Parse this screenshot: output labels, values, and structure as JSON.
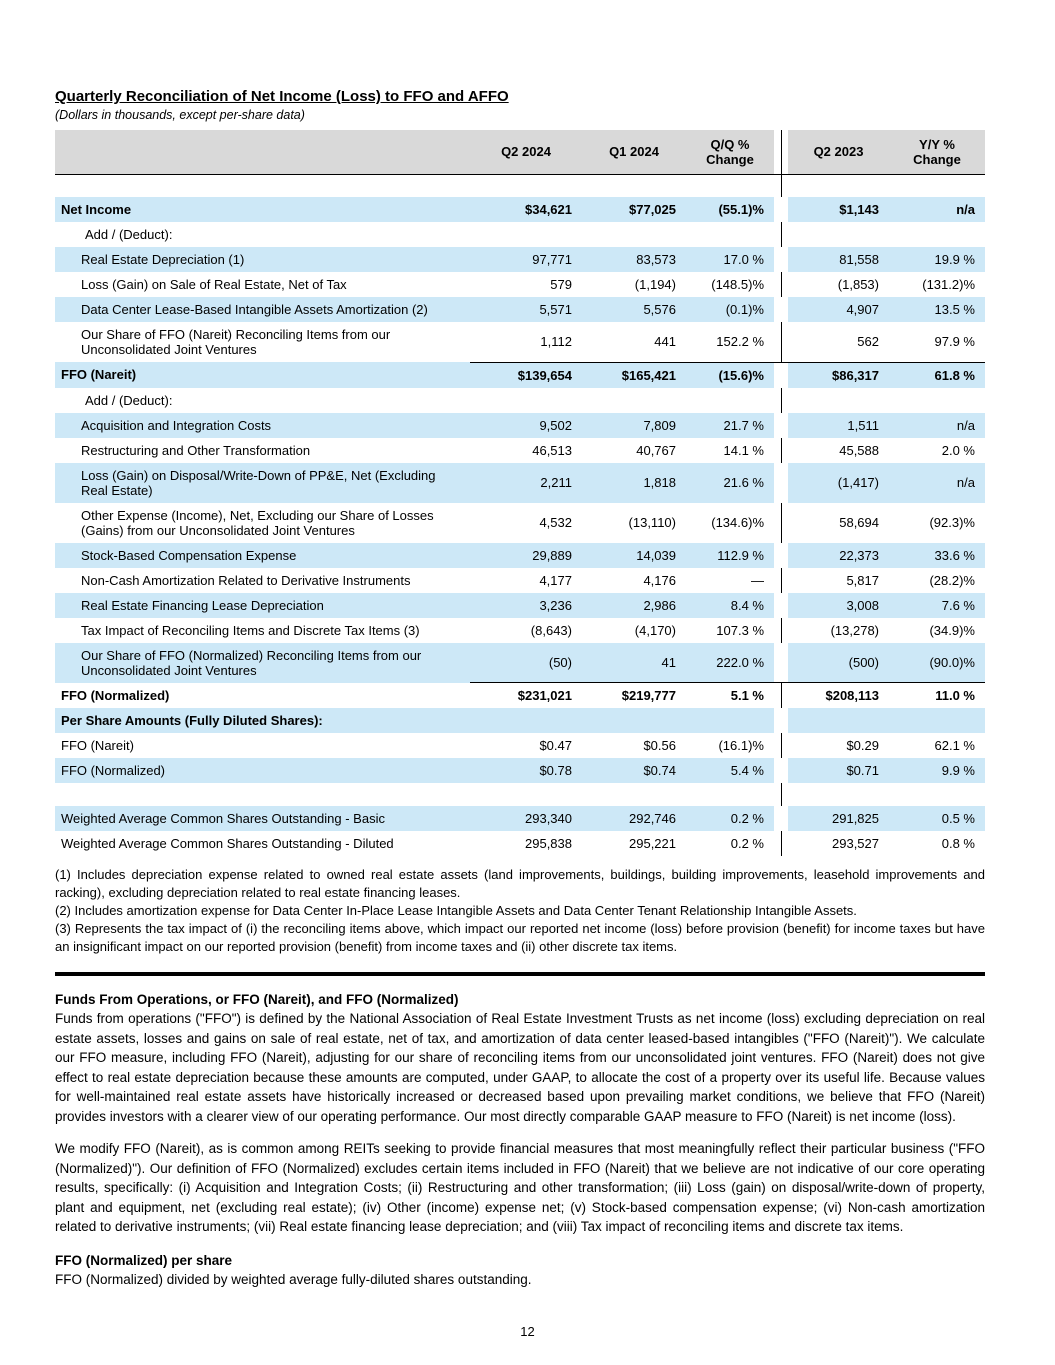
{
  "page": {
    "title": "Quarterly Reconciliation of Net Income (Loss) to FFO and AFFO",
    "subtitle": "(Dollars in thousands, except per-share data)",
    "page_number": "12"
  },
  "table": {
    "columns": [
      "Q2 2024",
      "Q1 2024",
      "Q/Q %\nChange",
      "Q2 2023",
      "Y/Y %\nChange"
    ],
    "rows": [
      {
        "label": "",
        "values": [
          "",
          "",
          "",
          "",
          ""
        ],
        "bg": "white",
        "spacer": true
      },
      {
        "label": "Net Income",
        "values": [
          "$34,621",
          "$77,025",
          "(55.1)%",
          "$1,143",
          "n/a"
        ],
        "bg": "blue",
        "bold": true,
        "indent": 0
      },
      {
        "label": "Add / (Deduct):",
        "values": [
          "",
          "",
          "",
          "",
          ""
        ],
        "bg": "white",
        "indent": 1
      },
      {
        "label": "Real Estate Depreciation (1)",
        "values": [
          "97,771",
          "83,573",
          "17.0 %",
          "81,558",
          "19.9 %"
        ],
        "bg": "blue",
        "indent": 2
      },
      {
        "label": "Loss (Gain) on Sale of Real Estate, Net of Tax",
        "values": [
          "579",
          "(1,194)",
          "(148.5)%",
          "(1,853)",
          "(131.2)%"
        ],
        "bg": "white",
        "indent": 2
      },
      {
        "label": "Data Center Lease-Based Intangible Assets Amortization (2)",
        "values": [
          "5,571",
          "5,576",
          "(0.1)%",
          "4,907",
          "13.5 %"
        ],
        "bg": "blue",
        "indent": 2
      },
      {
        "label": "Our Share of FFO (Nareit) Reconciling Items from our Unconsolidated Joint Ventures",
        "values": [
          "1,112",
          "441",
          "152.2 %",
          "562",
          "97.9 %"
        ],
        "bg": "white",
        "indent": 2,
        "underline_values": true
      },
      {
        "label": "FFO (Nareit)",
        "values": [
          "$139,654",
          "$165,421",
          "(15.6)%",
          "$86,317",
          "61.8 %"
        ],
        "bg": "blue",
        "bold": true,
        "indent": 0
      },
      {
        "label": "Add / (Deduct):",
        "values": [
          "",
          "",
          "",
          "",
          ""
        ],
        "bg": "white",
        "indent": 1
      },
      {
        "label": "Acquisition and Integration Costs",
        "values": [
          "9,502",
          "7,809",
          "21.7 %",
          "1,511",
          "n/a"
        ],
        "bg": "blue",
        "indent": 2
      },
      {
        "label": "Restructuring and Other Transformation",
        "values": [
          "46,513",
          "40,767",
          "14.1 %",
          "45,588",
          "2.0 %"
        ],
        "bg": "white",
        "indent": 2
      },
      {
        "label": "Loss (Gain) on Disposal/Write-Down of PP&E, Net (Excluding Real Estate)",
        "values": [
          "2,211",
          "1,818",
          "21.6 %",
          "(1,417)",
          "n/a"
        ],
        "bg": "blue",
        "indent": 2
      },
      {
        "label": "Other Expense (Income), Net, Excluding our Share of Losses (Gains) from our Unconsolidated Joint Ventures",
        "values": [
          "4,532",
          "(13,110)",
          "(134.6)%",
          "58,694",
          "(92.3)%"
        ],
        "bg": "white",
        "indent": 2
      },
      {
        "label": "Stock-Based Compensation Expense",
        "values": [
          "29,889",
          "14,039",
          "112.9 %",
          "22,373",
          "33.6 %"
        ],
        "bg": "blue",
        "indent": 2
      },
      {
        "label": "Non-Cash Amortization Related to Derivative Instruments",
        "values": [
          "4,177",
          "4,176",
          "—",
          "5,817",
          "(28.2)%"
        ],
        "bg": "white",
        "indent": 2
      },
      {
        "label": "Real Estate Financing Lease Depreciation",
        "values": [
          "3,236",
          "2,986",
          "8.4 %",
          "3,008",
          "7.6 %"
        ],
        "bg": "blue",
        "indent": 2
      },
      {
        "label": "Tax Impact of Reconciling Items and Discrete Tax Items (3)",
        "values": [
          "(8,643)",
          "(4,170)",
          "107.3 %",
          "(13,278)",
          "(34.9)%"
        ],
        "bg": "white",
        "indent": 2
      },
      {
        "label": "Our Share of FFO (Normalized) Reconciling Items from our Unconsolidated Joint Ventures",
        "values": [
          "(50)",
          "41",
          "222.0 %",
          "(500)",
          "(90.0)%"
        ],
        "bg": "blue",
        "indent": 2,
        "underline_values": true
      },
      {
        "label": "FFO (Normalized)",
        "values": [
          "$231,021",
          "$219,777",
          "5.1 %",
          "$208,113",
          "11.0 %"
        ],
        "bg": "white",
        "bold": true,
        "indent": 0
      },
      {
        "label": "Per Share Amounts (Fully Diluted Shares):",
        "values": [
          "",
          "",
          "",
          "",
          ""
        ],
        "bg": "blue",
        "bold": true,
        "indent": 0
      },
      {
        "label": "FFO (Nareit)",
        "values": [
          "$0.47",
          "$0.56",
          "(16.1)%",
          "$0.29",
          "62.1 %"
        ],
        "bg": "white",
        "indent": 0
      },
      {
        "label": "FFO (Normalized)",
        "values": [
          "$0.78",
          "$0.74",
          "5.4 %",
          "$0.71",
          "9.9 %"
        ],
        "bg": "blue",
        "indent": 0
      },
      {
        "label": "",
        "values": [
          "",
          "",
          "",
          "",
          ""
        ],
        "bg": "white",
        "spacer": true
      },
      {
        "label": "Weighted Average Common Shares Outstanding - Basic",
        "values": [
          "293,340",
          "292,746",
          "0.2 %",
          "291,825",
          "0.5 %"
        ],
        "bg": "blue",
        "indent": 0
      },
      {
        "label": "Weighted Average Common Shares Outstanding - Diluted",
        "values": [
          "295,838",
          "295,221",
          "0.2 %",
          "293,527",
          "0.8 %"
        ],
        "bg": "white",
        "indent": 0
      }
    ]
  },
  "footnotes": [
    "(1) Includes depreciation expense related to owned real estate assets (land improvements, buildings, building improvements, leasehold improvements and racking), excluding depreciation related to real estate financing leases.",
    "(2) Includes amortization expense for Data Center In-Place Lease Intangible Assets and Data Center Tenant Relationship Intangible Assets.",
    "(3) Represents the tax impact of (i) the reconciling items above, which impact our reported net income (loss) before provision (benefit) for income taxes but have an insignificant impact on our reported provision (benefit) from income taxes and (ii) other discrete tax items."
  ],
  "sections": [
    {
      "heading": "Funds From Operations, or FFO (Nareit), and FFO (Normalized)",
      "paragraphs": [
        "Funds from operations (\"FFO\") is defined by the National Association of Real Estate Investment Trusts as net income (loss) excluding depreciation on real estate assets, losses and gains on sale of real estate, net of tax, and amortization of data center leased-based intangibles (\"FFO (Nareit)\"). We calculate our FFO measure, including FFO (Nareit), adjusting for our share of reconciling items from our unconsolidated joint ventures. FFO (Nareit) does not give effect to real estate depreciation because these amounts are computed, under GAAP, to allocate the cost of a property over its useful life. Because values for well-maintained real estate assets have historically increased or decreased based upon prevailing market conditions, we believe that FFO (Nareit) provides investors with a clearer view of our operating performance. Our most directly comparable GAAP measure to FFO (Nareit) is net income (loss).",
        "We modify FFO (Nareit), as is common among REITs seeking to provide financial measures that most meaningfully reflect their particular business (\"FFO (Normalized)\"). Our definition of FFO (Normalized) excludes certain items included in FFO (Nareit) that we believe are not indicative of our core operating results, specifically: (i) Acquisition and Integration Costs; (ii) Restructuring and other transformation; (iii) Loss (gain) on disposal/write-down of property, plant and equipment, net (excluding real estate); (iv) Other (income) expense net; (v) Stock-based compensation expense; (vi) Non-cash amortization related to derivative instruments; (vii) Real estate financing lease depreciation; and (viii) Tax impact of reconciling items and discrete tax items."
      ]
    },
    {
      "heading": "FFO (Normalized) per share",
      "paragraphs": [
        "FFO (Normalized) divided by weighted average fully-diluted shares outstanding."
      ]
    }
  ]
}
